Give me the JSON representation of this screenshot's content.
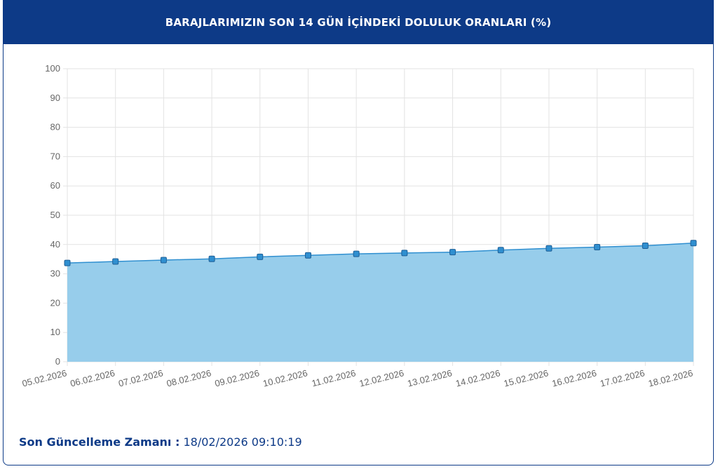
{
  "header": {
    "title": "BARAJLARIMIZIN SON 14 GÜN İÇİNDEKİ DOLULUK ORANLARI (%)"
  },
  "chart_data": {
    "type": "area",
    "x": [
      "05.02.2026",
      "06.02.2026",
      "07.02.2026",
      "08.02.2026",
      "09.02.2026",
      "10.02.2026",
      "11.02.2026",
      "12.02.2026",
      "13.02.2026",
      "14.02.2026",
      "15.02.2026",
      "16.02.2026",
      "17.02.2026",
      "18.02.2026"
    ],
    "series": [
      {
        "values": [
          33.7,
          34.2,
          34.7,
          35.1,
          35.8,
          36.3,
          36.8,
          37.1,
          37.4,
          38.1,
          38.7,
          39.1,
          39.6,
          40.5
        ]
      }
    ],
    "ylim": [
      0,
      100
    ],
    "yticks": [
      "0",
      "10",
      "20",
      "30",
      "40",
      "50",
      "60",
      "70",
      "80",
      "90",
      "100"
    ],
    "grid": true,
    "colors": {
      "line": "#2f8fd0",
      "fill": "#97cdeb",
      "marker": "#2f8fd0",
      "grid": "#e3e3e3"
    }
  },
  "footer": {
    "label": "Son Güncelleme Zamanı :",
    "value": "18/02/2026 09:10:19"
  }
}
